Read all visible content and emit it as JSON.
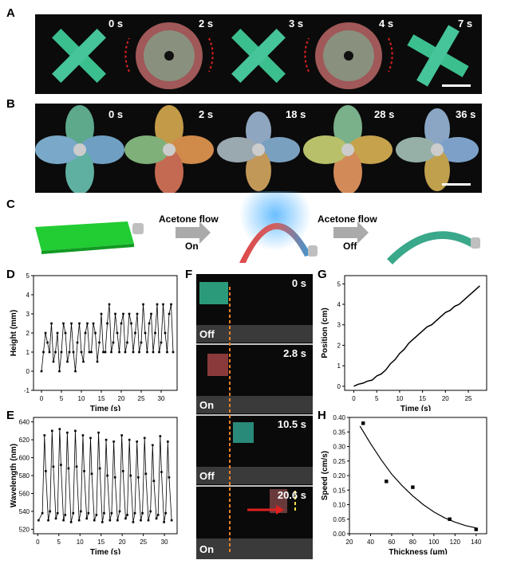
{
  "panels": {
    "A": {
      "letter": "A",
      "times": [
        "0 s",
        "2 s",
        "3 s",
        "4 s",
        "7 s"
      ]
    },
    "B": {
      "letter": "B",
      "times": [
        "0 s",
        "2 s",
        "18 s",
        "28 s",
        "36 s"
      ]
    },
    "C": {
      "letter": "C",
      "step1": {
        "label": "Acetone flow",
        "state": "On"
      },
      "step2": {
        "label": "Acetone flow",
        "state": "Off"
      }
    },
    "D": {
      "letter": "D"
    },
    "E": {
      "letter": "E"
    },
    "F": {
      "letter": "F",
      "frames": [
        {
          "time": "0 s",
          "state": "Off"
        },
        {
          "time": "2.8 s",
          "state": "On"
        },
        {
          "time": "10.5 s",
          "state": "Off"
        },
        {
          "time": "20.6 s",
          "state": "On"
        }
      ]
    },
    "G": {
      "letter": "G"
    },
    "H": {
      "letter": "H"
    }
  },
  "colors": {
    "trace": "#000000",
    "arrow_red": "#e02020",
    "dash_orange": "#f08020",
    "dash_yellow": "#f0e040",
    "strip_green": "#2ecc2e",
    "film_teal": "#3aa88a"
  },
  "chart_data": [
    {
      "id": "D",
      "type": "line",
      "xlabel": "Time (s)",
      "ylabel": "Height (mm)",
      "xlim": [
        -2,
        34
      ],
      "ylim": [
        -1,
        5
      ],
      "xticks": [
        "0",
        "5",
        "10",
        "15",
        "20",
        "25",
        "30"
      ],
      "yticks": [
        "-1",
        "0",
        "1",
        "2",
        "3",
        "4",
        "5"
      ],
      "x": [
        0,
        0.5,
        1,
        1.5,
        2,
        2.5,
        3,
        3.5,
        4,
        4.5,
        5,
        5.5,
        6,
        6.5,
        7,
        7.5,
        8,
        8.5,
        9,
        9.5,
        10,
        10.5,
        11,
        11.5,
        12,
        12.5,
        13,
        13.5,
        14,
        14.5,
        15,
        15.5,
        16,
        16.5,
        17,
        17.5,
        18,
        18.5,
        19,
        19.5,
        20,
        20.5,
        21,
        21.5,
        22,
        22.5,
        23,
        23.5,
        24,
        24.5,
        25,
        25.5,
        26,
        26.5,
        27,
        27.5,
        28,
        28.5,
        29,
        29.5,
        30,
        30.5,
        31,
        31.5,
        32,
        32.5,
        33
      ],
      "y": [
        0,
        1,
        2,
        1.5,
        1,
        2.5,
        0.5,
        1,
        2,
        0,
        1,
        2.5,
        2,
        0.5,
        1,
        2.5,
        1,
        0,
        1.5,
        2.5,
        1,
        0.5,
        2,
        2.5,
        1,
        1,
        2.5,
        2,
        0.5,
        1.5,
        3,
        1,
        1,
        2.5,
        3.5,
        1,
        1.5,
        3,
        2,
        1,
        2.5,
        3,
        1,
        1.5,
        3,
        2.5,
        1,
        2,
        3,
        1,
        1.5,
        3.5,
        2,
        1,
        2.5,
        3,
        1,
        2,
        3.5,
        1,
        1.5,
        3.5,
        2,
        1,
        3,
        3.5,
        1
      ]
    },
    {
      "id": "E",
      "type": "line",
      "xlabel": "Time (s)",
      "ylabel": "Wavelength (nm)",
      "xlim": [
        -1,
        33
      ],
      "ylim": [
        515,
        645
      ],
      "xticks": [
        "0",
        "5",
        "10",
        "15",
        "20",
        "25",
        "30"
      ],
      "yticks": [
        "520",
        "540",
        "560",
        "580",
        "600",
        "620",
        "640"
      ],
      "peaks_x": [
        1.6,
        3.4,
        5.2,
        7.0,
        8.9,
        10.7,
        12.5,
        14.4,
        16.2,
        18.0,
        19.9,
        21.7,
        23.5,
        25.3,
        27.2,
        29.0,
        30.8
      ],
      "peaks_y": [
        625,
        630,
        632,
        628,
        630,
        625,
        622,
        628,
        620,
        618,
        625,
        620,
        618,
        622,
        614,
        624,
        618
      ],
      "troughs_y": [
        530,
        532,
        530,
        528,
        530,
        532,
        530,
        528,
        530,
        530,
        532,
        528,
        530,
        530,
        532,
        528,
        530
      ]
    },
    {
      "id": "G",
      "type": "line",
      "xlabel": "Time (s)",
      "ylabel": "Position (cm)",
      "xlim": [
        -2,
        29
      ],
      "ylim": [
        -0.2,
        5.4
      ],
      "xticks": [
        "0",
        "5",
        "10",
        "15",
        "20",
        "25"
      ],
      "yticks": [
        "0",
        "1",
        "2",
        "3",
        "4",
        "5"
      ],
      "x": [
        0,
        1,
        2,
        3,
        4,
        5,
        6,
        7,
        8,
        9,
        10,
        11,
        12,
        13,
        14,
        15,
        16,
        17,
        18,
        19,
        20,
        21,
        22,
        23,
        24,
        25,
        26,
        27,
        27.5
      ],
      "y": [
        0,
        0.1,
        0.15,
        0.25,
        0.3,
        0.5,
        0.6,
        0.8,
        1.1,
        1.3,
        1.6,
        1.8,
        2.1,
        2.3,
        2.5,
        2.7,
        2.9,
        3.0,
        3.2,
        3.4,
        3.6,
        3.7,
        3.9,
        4.0,
        4.2,
        4.4,
        4.6,
        4.8,
        4.9
      ]
    },
    {
      "id": "H",
      "type": "scatter",
      "xlabel": "Thickness (μm)",
      "ylabel": "Speed (cm/s)",
      "xlim": [
        20,
        150
      ],
      "ylim": [
        0,
        0.4
      ],
      "xticks": [
        "20",
        "40",
        "60",
        "80",
        "100",
        "120",
        "140"
      ],
      "yticks": [
        "0.00",
        "0.05",
        "0.10",
        "0.15",
        "0.20",
        "0.25",
        "0.30",
        "0.35",
        "0.40"
      ],
      "points": {
        "x": [
          33,
          55,
          80,
          115,
          140
        ],
        "y": [
          0.38,
          0.18,
          0.16,
          0.05,
          0.015
        ]
      },
      "fit": {
        "x": [
          30,
          40,
          50,
          60,
          70,
          80,
          90,
          100,
          110,
          120,
          130,
          140
        ],
        "y": [
          0.37,
          0.31,
          0.255,
          0.205,
          0.165,
          0.13,
          0.1,
          0.075,
          0.055,
          0.04,
          0.028,
          0.02
        ]
      }
    }
  ]
}
